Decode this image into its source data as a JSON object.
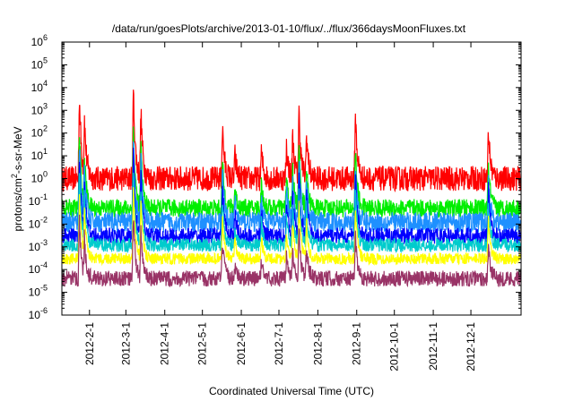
{
  "chart_data": {
    "type": "line",
    "title": "/data/run/goesPlots/archive/2013-01-10/flux/../flux/366daysMoonFluxes.txt",
    "xlabel": "Coordinated Universal Time (UTC)",
    "ylabel_parts": {
      "base": "protons/cm",
      "sup": "2",
      "tail": "-s-sr-MeV"
    },
    "y_scale": "log",
    "ylim": [
      1e-06,
      1000000.0
    ],
    "y_ticks": [
      {
        "value": 1e-06,
        "base": "10",
        "exp": "-6"
      },
      {
        "value": 1e-05,
        "base": "10",
        "exp": "-5"
      },
      {
        "value": 0.0001,
        "base": "10",
        "exp": "-4"
      },
      {
        "value": 0.001,
        "base": "10",
        "exp": "-3"
      },
      {
        "value": 0.01,
        "base": "10",
        "exp": "-2"
      },
      {
        "value": 0.1,
        "base": "10",
        "exp": "-1"
      },
      {
        "value": 1,
        "base": "10",
        "exp": "0"
      },
      {
        "value": 10,
        "base": "10",
        "exp": "1"
      },
      {
        "value": 100,
        "base": "10",
        "exp": "2"
      },
      {
        "value": 1000,
        "base": "10",
        "exp": "3"
      },
      {
        "value": 10000,
        "base": "10",
        "exp": "4"
      },
      {
        "value": 100000,
        "base": "10",
        "exp": "5"
      },
      {
        "value": 1000000,
        "base": "10",
        "exp": "6"
      }
    ],
    "xlim": [
      "2012-01-10",
      "2013-01-10"
    ],
    "x_ticks": [
      "2012-2-1",
      "2012-3-1",
      "2012-4-1",
      "2012-5-1",
      "2012-6-1",
      "2012-7-1",
      "2012-8-1",
      "2012-9-1",
      "2012-10-1",
      "2012-11-1",
      "2012-12-1"
    ],
    "x_tick_dates": [
      "2012-02-01",
      "2012-03-01",
      "2012-04-01",
      "2012-05-01",
      "2012-06-01",
      "2012-07-01",
      "2012-08-01",
      "2012-09-01",
      "2012-10-01",
      "2012-11-01",
      "2012-12-01"
    ],
    "grid": false,
    "events": [
      {
        "date": "2012-01-24",
        "peak": 5000
      },
      {
        "date": "2012-01-28",
        "peak": 500
      },
      {
        "date": "2012-03-07",
        "peak": 8000
      },
      {
        "date": "2012-03-13",
        "peak": 1000
      },
      {
        "date": "2012-05-17",
        "peak": 200
      },
      {
        "date": "2012-05-27",
        "peak": 10
      },
      {
        "date": "2012-06-17",
        "peak": 15
      },
      {
        "date": "2012-07-07",
        "peak": 30
      },
      {
        "date": "2012-07-12",
        "peak": 80
      },
      {
        "date": "2012-07-17",
        "peak": 1000
      },
      {
        "date": "2012-07-23",
        "peak": 100
      },
      {
        "date": "2012-08-31",
        "peak": 700
      },
      {
        "date": "2012-12-15",
        "peak": 150
      }
    ],
    "series": [
      {
        "color": "#ff0000",
        "baseline": 1.0,
        "noise": 0.55,
        "response": 1.0
      },
      {
        "color": "#00ee00",
        "baseline": 0.05,
        "noise": 0.4,
        "response": 0.9
      },
      {
        "color": "#1e90ff",
        "baseline": 0.012,
        "noise": 0.45,
        "response": 0.95
      },
      {
        "color": "#0000ff",
        "baseline": 0.003,
        "noise": 0.35,
        "response": 0.95
      },
      {
        "color": "#00cccc",
        "baseline": 0.0012,
        "noise": 0.3,
        "response": 0.85
      },
      {
        "color": "#ffff00",
        "baseline": 0.0003,
        "noise": 0.25,
        "response": 0.8
      },
      {
        "color": "#993366",
        "baseline": 4e-05,
        "noise": 0.35,
        "response": 0.7
      }
    ]
  }
}
